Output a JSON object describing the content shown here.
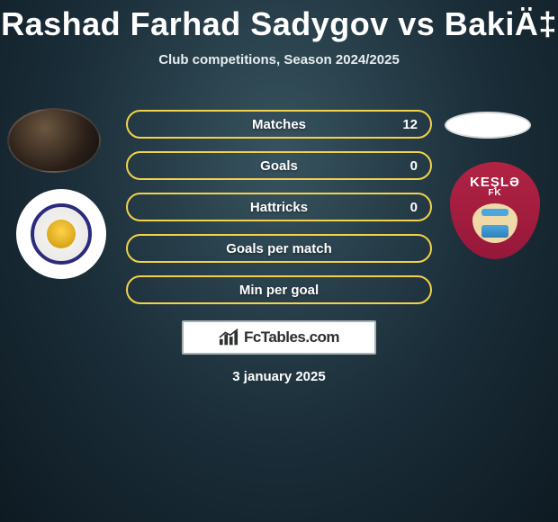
{
  "title": "Rashad Farhad Sadygov vs BakiÄ‡",
  "subtitle": "Club competitions, Season 2024/2025",
  "date": "3 january 2025",
  "brand": {
    "text": "FcTables.com"
  },
  "colors": {
    "bar_border": "#f3d24a",
    "bar_text": "#ffffff",
    "badge_bg": "#ffffff",
    "badge_border": "#a7b2b7",
    "crest_right_bg": "#b12344",
    "crest_right_text": "KEŞLƏ",
    "crest_right_sub": "FK"
  },
  "stats": [
    {
      "label": "Matches",
      "value": "12",
      "fill_pct": 0
    },
    {
      "label": "Goals",
      "value": "0",
      "fill_pct": 0
    },
    {
      "label": "Hattricks",
      "value": "0",
      "fill_pct": 0
    },
    {
      "label": "Goals per match",
      "value": "",
      "fill_pct": 0
    },
    {
      "label": "Min per goal",
      "value": "",
      "fill_pct": 0
    }
  ]
}
